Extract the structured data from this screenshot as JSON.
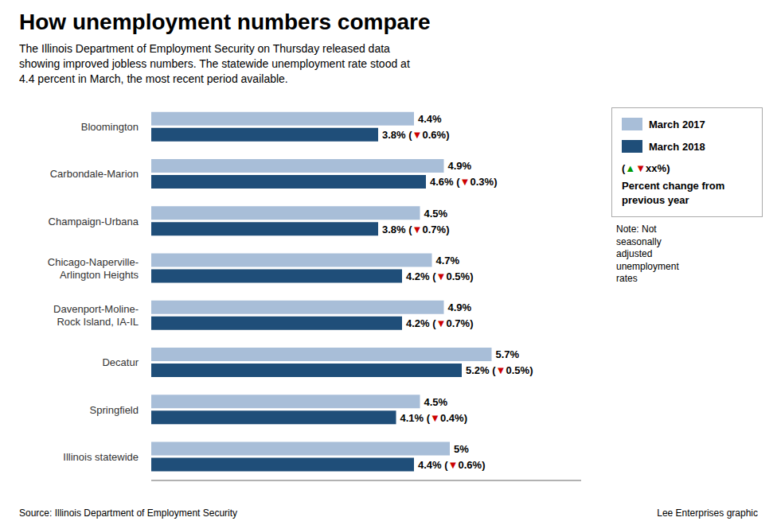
{
  "chart_data": {
    "type": "bar",
    "orientation": "horizontal",
    "title": "How unemployment numbers compare",
    "subtitle": "The Illinois Department of Employment Security on Thursday released data\nshowing improved jobless numbers. The statewide unemployment rate stood at\n4.4 percent in March, the most recent period available.",
    "source": "Source: Illinois Department of Employment Security",
    "credit": "Lee Enterprises graphic",
    "note": "Note: Not\nseasonally\nadjusted\nunemployment\nrates",
    "categories": [
      "Bloomington",
      "Carbondale-Marion",
      "Champaign-Urbana",
      "Chicago-Naperville-\nArlington Heights",
      "Davenport-Moline-\nRock Island, IA-IL",
      "Decatur",
      "Springfield",
      "Illinois statewide"
    ],
    "series": [
      {
        "name": "March 2017",
        "color": "#a8bed8",
        "values": [
          4.4,
          4.9,
          4.5,
          4.7,
          4.9,
          5.7,
          4.5,
          5.0
        ],
        "value_labels": [
          "4.4%",
          "4.9%",
          "4.5%",
          "4.7%",
          "4.9%",
          "5.7%",
          "4.5%",
          "5%"
        ]
      },
      {
        "name": "March 2018",
        "color": "#1f4e79",
        "values": [
          3.8,
          4.6,
          3.8,
          4.2,
          4.2,
          5.2,
          4.1,
          4.4
        ],
        "value_labels": [
          "3.8%",
          "4.6%",
          "3.8%",
          "4.2%",
          "4.2%",
          "5.2%",
          "4.1%",
          "4.4%"
        ],
        "annotations": [
          "(▼0.6%)",
          "(▼0.3%)",
          "(▼0.7%)",
          "(▼0.5%)",
          "(▼0.7%)",
          "(▼0.5%)",
          "(▼0.4%)",
          "(▼0.6%)"
        ]
      }
    ],
    "xlim": [
      0,
      7.2
    ],
    "tick_labels": false,
    "grid": false,
    "data_labels": true,
    "legend": "upper right",
    "change_legend": "(▲▼xx%)",
    "change_legend_label": "Percent change from previous year",
    "symbol_colors": {
      "▲": "#009900",
      "▼": "#cc0000"
    }
  }
}
